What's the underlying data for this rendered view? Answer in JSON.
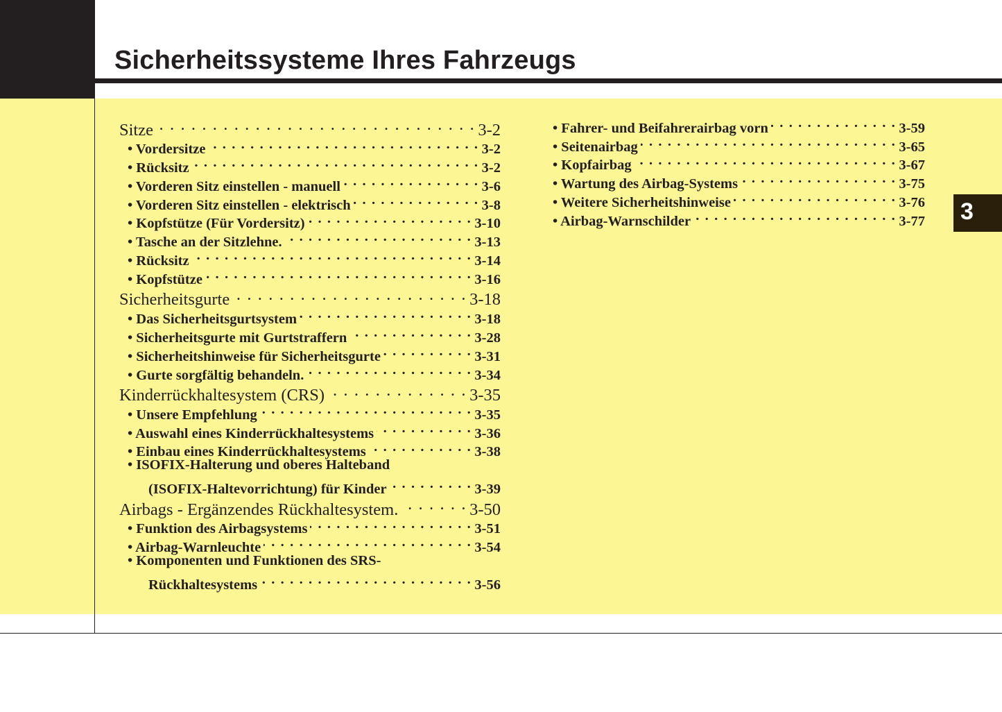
{
  "header": {
    "title": "Sicherheitssysteme Ihres Fahrzeugs"
  },
  "chapter_tab": "3",
  "toc_left": [
    {
      "type": "heading",
      "label": "Sitze",
      "page": "3-2"
    },
    {
      "type": "item",
      "label": "• Vordersitze",
      "page": "3-2"
    },
    {
      "type": "item",
      "label": "• Rücksitz",
      "page": "3-2"
    },
    {
      "type": "item",
      "label": "• Vorderen Sitz einstellen - manuell",
      "page": "3-6"
    },
    {
      "type": "item",
      "label": "• Vorderen Sitz einstellen - elektrisch",
      "page": "3-8"
    },
    {
      "type": "item",
      "label": "• Kopfstütze (Für Vordersitz)",
      "page": "3-10"
    },
    {
      "type": "item",
      "label": "• Tasche an der Sitzlehne.",
      "page": "3-13"
    },
    {
      "type": "item",
      "label": "• Rücksitz",
      "page": "3-14"
    },
    {
      "type": "item",
      "label": "• Kopfstütze",
      "page": "3-16"
    },
    {
      "type": "heading",
      "label": "Sicherheitsgurte",
      "page": "3-18"
    },
    {
      "type": "item",
      "label": "• Das Sicherheitsgurtsystem",
      "page": "3-18"
    },
    {
      "type": "item",
      "label": "• Sicherheitsgurte mit Gurtstraffern",
      "page": "3-28"
    },
    {
      "type": "item",
      "label": "• Sicherheitshinweise für Sicherheitsgurte",
      "page": "3-31"
    },
    {
      "type": "item",
      "label": "• Gurte sorgfältig behandeln.",
      "page": "3-34"
    },
    {
      "type": "heading",
      "label": "Kinderrückhaltesystem (CRS)",
      "page": "3-35"
    },
    {
      "type": "item",
      "label": "• Unsere Empfehlung",
      "page": "3-35"
    },
    {
      "type": "item",
      "label": "• Auswahl eines Kinderrückhaltesystems",
      "page": "3-36"
    },
    {
      "type": "item",
      "label": "• Einbau eines Kinderrückhaltesystems",
      "page": "3-38"
    },
    {
      "type": "item",
      "label": "• ISOFIX-Halterung und oberes Halteband",
      "page": ""
    },
    {
      "type": "cont",
      "label": "(ISOFIX-Haltevorrichtung) für Kinder",
      "page": "3-39"
    },
    {
      "type": "heading",
      "label": "Airbags - Ergänzendes Rückhaltesystem.",
      "page": "3-50"
    },
    {
      "type": "item",
      "label": "• Funktion des Airbagsystems",
      "page": "3-51"
    },
    {
      "type": "item",
      "label": "• Airbag-Warnleuchte",
      "page": "3-54"
    },
    {
      "type": "item",
      "label": "• Komponenten und Funktionen des SRS-",
      "page": ""
    },
    {
      "type": "cont",
      "label": "Rückhaltesystems",
      "page": "3-56"
    }
  ],
  "toc_right": [
    {
      "type": "nb",
      "label": "• Fahrer- und Beifahrerairbag vorn",
      "page": "3-59"
    },
    {
      "type": "nb",
      "label": "• Seitenairbag",
      "page": "3-65"
    },
    {
      "type": "nb",
      "label": "• Kopfairbag",
      "page": "3-67"
    },
    {
      "type": "nb",
      "label": "• Wartung des Airbag-Systems",
      "page": "3-75"
    },
    {
      "type": "nb",
      "label": "• Weitere Sicherheitshinweise",
      "page": "3-76"
    },
    {
      "type": "nb",
      "label": "• Airbag-Warnschilder",
      "page": "3-77"
    }
  ]
}
